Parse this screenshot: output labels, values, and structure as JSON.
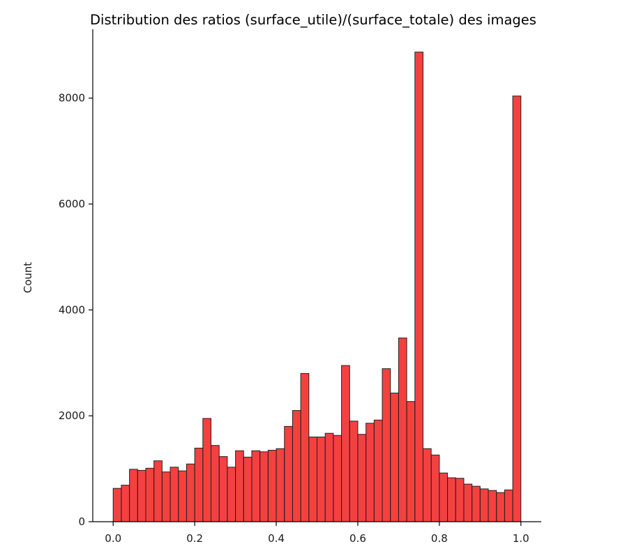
{
  "chart_data": {
    "type": "bar",
    "title": "Distribution des ratios (surface_utile)/(surface_totale) des images",
    "xlabel": "",
    "ylabel": "Count",
    "xlim": [
      -0.05,
      1.05
    ],
    "ylim": [
      0,
      9300
    ],
    "xticks": [
      0.0,
      0.2,
      0.4,
      0.6,
      0.8,
      1.0
    ],
    "xtick_labels": [
      "0.0",
      "0.2",
      "0.4",
      "0.6",
      "0.8",
      "1.0"
    ],
    "yticks": [
      0,
      2000,
      4000,
      6000,
      8000
    ],
    "ytick_labels": [
      "0",
      "2000",
      "4000",
      "6000",
      "8000"
    ],
    "bin_start": 0.0,
    "bin_end": 1.0,
    "bar_color": "#f20000",
    "bar_opacity": 0.75,
    "edge_color": "#222222",
    "grid": false,
    "values": [
      630,
      690,
      990,
      970,
      1010,
      1150,
      940,
      1030,
      960,
      1090,
      1390,
      1950,
      1440,
      1230,
      1030,
      1340,
      1220,
      1340,
      1320,
      1350,
      1380,
      1800,
      2100,
      2800,
      1600,
      1600,
      1670,
      1630,
      2950,
      1900,
      1650,
      1860,
      1920,
      2890,
      2430,
      3470,
      2270,
      8870,
      1380,
      1260,
      920,
      830,
      820,
      710,
      670,
      620,
      590,
      550,
      600,
      8040
    ]
  }
}
